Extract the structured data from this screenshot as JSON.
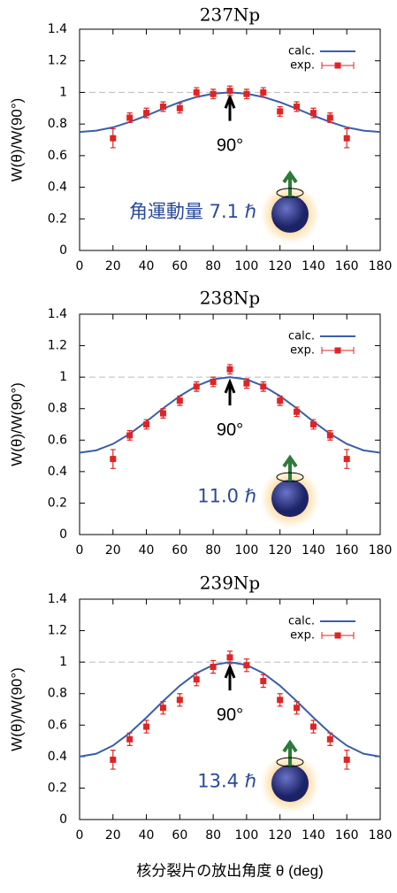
{
  "chart_data": [
    {
      "type": "line",
      "title": "237Np",
      "ylabel": "W(θ)/W(90°)",
      "xlim": [
        0,
        180
      ],
      "xticks": [
        0,
        20,
        40,
        60,
        80,
        100,
        120,
        140,
        160,
        180
      ],
      "ylim": [
        0,
        1.4
      ],
      "yticks": [
        0,
        0.2,
        0.4,
        0.6,
        0.8,
        1,
        1.2,
        1.4
      ],
      "reference_line": 1,
      "legend": "upper right",
      "series": [
        {
          "name": "calc.",
          "color": "#3a5fa8",
          "x": [
            0,
            10,
            20,
            30,
            40,
            50,
            60,
            70,
            80,
            90,
            100,
            110,
            120,
            130,
            140,
            150,
            160,
            170,
            180
          ],
          "values": [
            0.75,
            0.758,
            0.779,
            0.813,
            0.853,
            0.897,
            0.938,
            0.971,
            0.992,
            1.0,
            0.992,
            0.971,
            0.938,
            0.897,
            0.853,
            0.813,
            0.779,
            0.758,
            0.75
          ]
        },
        {
          "name": "exp.",
          "color": "#e02424",
          "x": [
            20,
            30,
            40,
            50,
            60,
            70,
            80,
            90,
            100,
            110,
            120,
            130,
            140,
            150,
            160
          ],
          "values": [
            0.71,
            0.84,
            0.87,
            0.91,
            0.9,
            1.0,
            0.99,
            1.01,
            0.99,
            1.0,
            0.88,
            0.91,
            0.87,
            0.84,
            0.71
          ],
          "errors": [
            0.06,
            0.03,
            0.03,
            0.03,
            0.03,
            0.03,
            0.03,
            0.03,
            0.03,
            0.03,
            0.03,
            0.03,
            0.03,
            0.03,
            0.06
          ]
        }
      ],
      "annotations": [
        {
          "text": "90°"
        },
        {
          "text": "角運動量 7.1 ℏ"
        }
      ]
    },
    {
      "type": "line",
      "title": "238Np",
      "ylabel": "W(θ)/W(90°)",
      "xlim": [
        0,
        180
      ],
      "xticks": [
        0,
        20,
        40,
        60,
        80,
        100,
        120,
        140,
        160,
        180
      ],
      "ylim": [
        0,
        1.4
      ],
      "yticks": [
        0,
        0.2,
        0.4,
        0.6,
        0.8,
        1,
        1.2,
        1.4
      ],
      "reference_line": 1,
      "legend": "upper right",
      "series": [
        {
          "name": "calc.",
          "color": "#3a5fa8",
          "x": [
            0,
            10,
            20,
            30,
            40,
            50,
            60,
            70,
            80,
            90,
            100,
            110,
            120,
            130,
            140,
            150,
            160,
            170,
            180
          ],
          "values": [
            0.52,
            0.535,
            0.576,
            0.64,
            0.718,
            0.802,
            0.88,
            0.944,
            0.986,
            1.0,
            0.986,
            0.944,
            0.88,
            0.802,
            0.718,
            0.64,
            0.576,
            0.535,
            0.52
          ]
        },
        {
          "name": "exp.",
          "color": "#e02424",
          "x": [
            20,
            30,
            40,
            50,
            60,
            70,
            80,
            90,
            100,
            110,
            120,
            130,
            140,
            150,
            160
          ],
          "values": [
            0.48,
            0.63,
            0.7,
            0.77,
            0.85,
            0.94,
            0.97,
            1.05,
            0.96,
            0.94,
            0.85,
            0.78,
            0.7,
            0.63,
            0.48
          ],
          "errors": [
            0.06,
            0.03,
            0.03,
            0.03,
            0.03,
            0.03,
            0.03,
            0.03,
            0.03,
            0.03,
            0.03,
            0.03,
            0.03,
            0.03,
            0.06
          ]
        }
      ],
      "annotations": [
        {
          "text": "90°"
        },
        {
          "text": "11.0 ℏ"
        }
      ]
    },
    {
      "type": "line",
      "title": "239Np",
      "ylabel": "W(θ)/W(90°)",
      "xlim": [
        0,
        180
      ],
      "xticks": [
        0,
        20,
        40,
        60,
        80,
        100,
        120,
        140,
        160,
        180
      ],
      "ylim": [
        0,
        1.4
      ],
      "yticks": [
        0,
        0.2,
        0.4,
        0.6,
        0.8,
        1,
        1.2,
        1.4
      ],
      "reference_line": 1,
      "legend": "upper right",
      "series": [
        {
          "name": "calc.",
          "color": "#3a5fa8",
          "x": [
            0,
            10,
            20,
            30,
            40,
            50,
            60,
            70,
            80,
            90,
            100,
            110,
            120,
            130,
            140,
            150,
            160,
            170,
            180
          ],
          "values": [
            0.4,
            0.418,
            0.47,
            0.55,
            0.648,
            0.752,
            0.85,
            0.93,
            0.982,
            1.0,
            0.982,
            0.93,
            0.85,
            0.752,
            0.648,
            0.55,
            0.47,
            0.418,
            0.4
          ]
        },
        {
          "name": "exp.",
          "color": "#e02424",
          "x": [
            20,
            30,
            40,
            50,
            60,
            70,
            80,
            90,
            100,
            110,
            120,
            130,
            140,
            150,
            160
          ],
          "values": [
            0.38,
            0.51,
            0.59,
            0.71,
            0.76,
            0.89,
            0.97,
            1.03,
            0.98,
            0.88,
            0.76,
            0.71,
            0.59,
            0.51,
            0.38
          ],
          "errors": [
            0.06,
            0.04,
            0.04,
            0.04,
            0.04,
            0.04,
            0.04,
            0.04,
            0.04,
            0.04,
            0.04,
            0.04,
            0.04,
            0.04,
            0.06
          ]
        }
      ],
      "annotations": [
        {
          "text": "90°"
        },
        {
          "text": "13.4 ℏ"
        }
      ]
    }
  ],
  "xlabel": "核分裂片の放出角度 θ (deg)"
}
